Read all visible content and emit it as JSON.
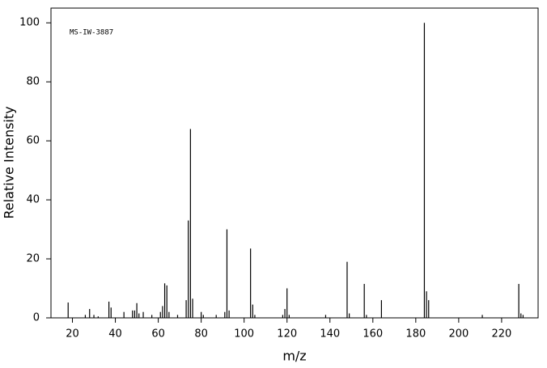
{
  "chart_data": {
    "type": "bar",
    "annotation": "MS-IW-3887",
    "x_label": "m/z",
    "y_label": "Relative Intensity",
    "x": [
      18,
      26,
      28,
      30,
      32,
      37,
      38,
      44,
      48,
      49,
      50,
      51,
      53,
      57,
      61,
      62,
      63,
      64,
      65,
      69,
      73,
      74,
      75,
      76,
      80,
      81,
      87,
      91,
      92,
      93,
      103,
      104,
      105,
      118,
      119,
      120,
      121,
      138,
      148,
      149,
      156,
      157,
      164,
      184,
      185,
      186,
      211,
      228,
      229,
      230
    ],
    "values": [
      5.2,
      1,
      3,
      1,
      0.5,
      5.5,
      3.5,
      2,
      2.5,
      2.5,
      5,
      1.5,
      2,
      1,
      2,
      4,
      11.7,
      11,
      2,
      1,
      6,
      33,
      64,
      6.5,
      2,
      1,
      1,
      2,
      30,
      2.5,
      23.5,
      4.5,
      1,
      1,
      3,
      10,
      1,
      1,
      19,
      1.5,
      11.5,
      1,
      6,
      100,
      9,
      6,
      1,
      11.5,
      1.5,
      1
    ],
    "color": "#000000",
    "xlim": [
      10,
      237
    ],
    "ylim": [
      0,
      105
    ],
    "xticks": [
      20,
      40,
      60,
      80,
      100,
      120,
      140,
      160,
      180,
      200,
      220
    ],
    "yticks": [
      0,
      20,
      40,
      60,
      80,
      100
    ]
  }
}
